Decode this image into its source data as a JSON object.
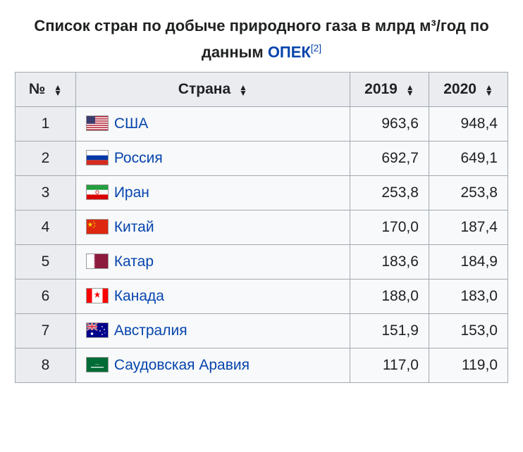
{
  "caption": {
    "before_link": "Список стран по добыче природного газа в млрд м³/год по данным ",
    "link_text": "ОПЕК",
    "ref": "[2]"
  },
  "columns": {
    "rank": "№",
    "country": "Страна",
    "y2019": "2019",
    "y2020": "2020"
  },
  "rows": [
    {
      "rank": "1",
      "flag": "usa",
      "country": "США",
      "y2019": "963,6",
      "y2020": "948,4"
    },
    {
      "rank": "2",
      "flag": "russia",
      "country": "Россия",
      "y2019": "692,7",
      "y2020": "649,1"
    },
    {
      "rank": "3",
      "flag": "iran",
      "country": "Иран",
      "y2019": "253,8",
      "y2020": "253,8"
    },
    {
      "rank": "4",
      "flag": "china",
      "country": "Китай",
      "y2019": "170,0",
      "y2020": "187,4"
    },
    {
      "rank": "5",
      "flag": "qatar",
      "country": "Катар",
      "y2019": "183,6",
      "y2020": "184,9"
    },
    {
      "rank": "6",
      "flag": "canada",
      "country": "Канада",
      "y2019": "188,0",
      "y2020": "183,0"
    },
    {
      "rank": "7",
      "flag": "aus",
      "country": "Австралия",
      "y2019": "151,9",
      "y2020": "153,0"
    },
    {
      "rank": "8",
      "flag": "saudi",
      "country": "Саудовская Аравия",
      "y2019": "117,0",
      "y2020": "119,0"
    }
  ],
  "flags": {
    "usa": "<svg viewBox='0 0 30 20' xmlns='http://www.w3.org/2000/svg'><rect width='30' height='20' fill='#b22234'/><rect y='1.54' width='30' height='1.54' fill='#fff'/><rect y='4.62' width='30' height='1.54' fill='#fff'/><rect y='7.69' width='30' height='1.54' fill='#fff'/><rect y='10.77' width='30' height='1.54' fill='#fff'/><rect y='13.85' width='30' height='1.54' fill='#fff'/><rect y='16.92' width='30' height='1.54' fill='#fff'/><rect width='12' height='10.77' fill='#3c3b6e'/></svg>",
    "russia": "<svg viewBox='0 0 30 20' xmlns='http://www.w3.org/2000/svg'><rect width='30' height='20' fill='#fff'/><rect y='6.67' width='30' height='6.67' fill='#0039a6'/><rect y='13.33' width='30' height='6.67' fill='#d52b1e'/></svg>",
    "iran": "<svg viewBox='0 0 30 20' xmlns='http://www.w3.org/2000/svg'><rect width='30' height='20' fill='#fff'/><rect width='30' height='6.67' fill='#239f40'/><rect y='13.33' width='30' height='6.67' fill='#da0000'/><circle cx='15' cy='10' r='2.2' fill='none' stroke='#da0000' stroke-width='0.9'/></svg>",
    "china": "<svg viewBox='0 0 30 20' xmlns='http://www.w3.org/2000/svg'><rect width='30' height='20' fill='#de2910'/><polygon points='5,3 5.9,5.7 8.8,5.7 6.4,7.4 7.3,10.2 5,8.5 2.7,10.2 3.6,7.4 1.2,5.7 4.1,5.7' fill='#ffde00'/><circle cx='10' cy='3' r='0.8' fill='#ffde00'/><circle cx='11.5' cy='5.5' r='0.8' fill='#ffde00'/><circle cx='11.5' cy='8.5' r='0.8' fill='#ffde00'/><circle cx='10' cy='11' r='0.8' fill='#ffde00'/></svg>",
    "qatar": "<svg viewBox='0 0 30 20' xmlns='http://www.w3.org/2000/svg'><rect width='30' height='20' fill='#8d1b3d'/><polygon points='0,0 10,0 12,1.1 10,2.2 12,3.3 10,4.4 12,5.6 10,6.7 12,7.8 10,8.9 12,10 10,11.1 12,12.2 10,13.3 12,14.4 10,15.6 12,16.7 10,17.8 12,18.9 10,20 0,20' fill='#fff'/></svg>",
    "canada": "<svg viewBox='0 0 30 20' xmlns='http://www.w3.org/2000/svg'><rect width='30' height='20' fill='#fff'/><rect width='7.5' height='20' fill='#ff0000'/><rect x='22.5' width='7.5' height='20' fill='#ff0000'/><polygon points='15,4 16,7 19,7 16.8,9 18,13 15,10.5 12,13 13.2,9 11,7 14,7' fill='#ff0000'/></svg>",
    "aus": "<svg viewBox='0 0 30 20' xmlns='http://www.w3.org/2000/svg'><rect width='30' height='20' fill='#00008b'/><rect width='15' height='10' fill='#00247d'/><path d='M0,0 L15,10 M15,0 L0,10' stroke='#fff' stroke-width='2'/><path d='M0,0 L15,10 M15,0 L0,10' stroke='#cf142b' stroke-width='1'/><path d='M7.5,0 V10 M0,5 H15' stroke='#fff' stroke-width='3'/><path d='M7.5,0 V10 M0,5 H15' stroke='#cf142b' stroke-width='1.5'/><circle cx='7.5' cy='15' r='1.8' fill='#fff'/><circle cx='22' cy='5' r='0.9' fill='#fff'/><circle cx='25' cy='9' r='0.9' fill='#fff'/><circle cx='22' cy='16' r='0.9' fill='#fff'/><circle cx='19' cy='11' r='0.9' fill='#fff'/><circle cx='26' cy='14' r='0.6' fill='#fff'/></svg>",
    "saudi": "<svg viewBox='0 0 30 20' xmlns='http://www.w3.org/2000/svg'><rect width='30' height='20' fill='#006c35'/><rect x='6' y='13' width='18' height='1.2' fill='#fff'/><text x='15' y='10' font-size='4' fill='#fff' text-anchor='middle' font-family='serif'>ـــــ</text></svg>"
  },
  "styling": {
    "link_color": "#0645ad",
    "header_bg": "#eaecf0",
    "cell_bg": "#f8f9fa",
    "border_color": "#a2a9b1",
    "text_color": "#202122",
    "font_size_caption": 22,
    "font_size_cell": 21
  }
}
